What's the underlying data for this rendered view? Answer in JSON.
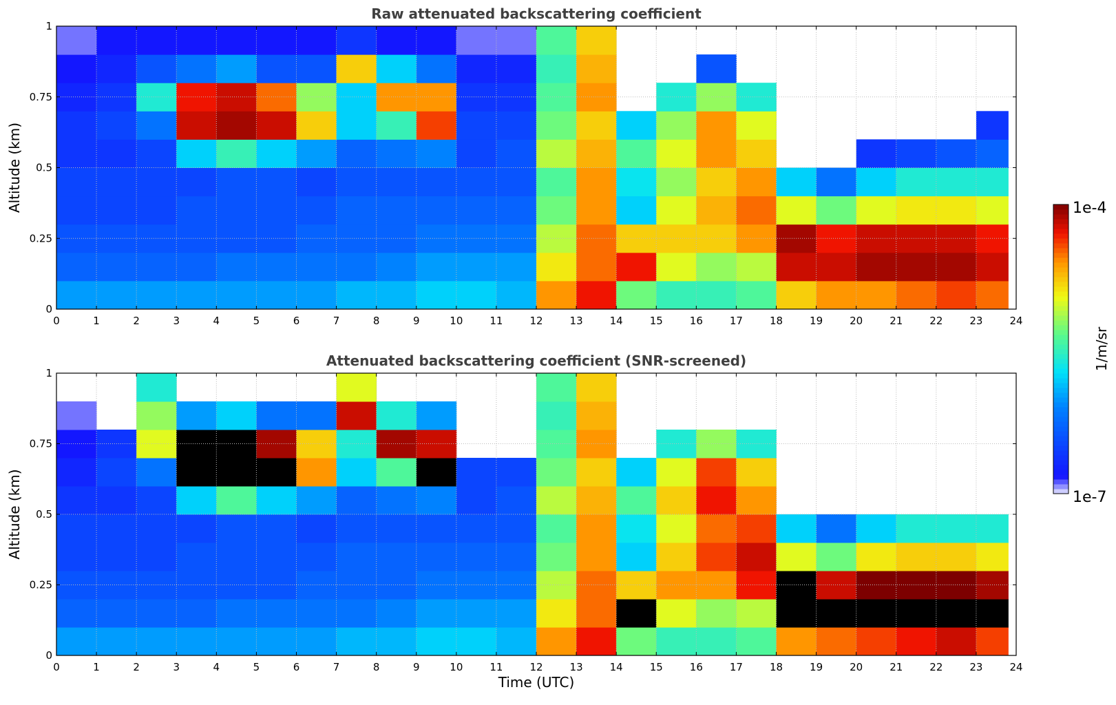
{
  "chart_data": [
    {
      "type": "heatmap",
      "title": "Raw attenuated backscattering coefficient",
      "xlabel": "",
      "ylabel": "Altitude (km)",
      "xlim": [
        0,
        24
      ],
      "ylim": [
        0,
        1
      ],
      "xticks": [
        "0",
        "1",
        "2",
        "3",
        "4",
        "5",
        "6",
        "7",
        "8",
        "9",
        "10",
        "11",
        "12",
        "13",
        "14",
        "15",
        "16",
        "17",
        "18",
        "19",
        "20",
        "21",
        "22",
        "23",
        "24"
      ],
      "yticks": [
        "0",
        "0.25",
        "0.5",
        "0.75",
        "1"
      ],
      "grid": true,
      "saturate_black": false,
      "x_bin_hours": 1,
      "altitude_bins_km": [
        0.05,
        0.15,
        0.25,
        0.35,
        0.45,
        0.55,
        0.65,
        0.75,
        0.85,
        0.95
      ],
      "value_units": "log10(1/m/sr)",
      "data_end_hour": 23.8,
      "columns": [
        [
          -6.0,
          -6.3,
          -6.4,
          -6.5,
          -6.5,
          -6.6,
          -6.6,
          -6.7,
          -6.8,
          -6.9
        ],
        [
          -6.0,
          -6.3,
          -6.4,
          -6.5,
          -6.5,
          -6.6,
          -6.5,
          -6.6,
          -6.7,
          -6.8
        ],
        [
          -6.0,
          -6.3,
          -6.4,
          -6.5,
          -6.5,
          -6.5,
          -6.2,
          -5.6,
          -6.4,
          -6.8
        ],
        [
          -6.0,
          -6.3,
          -6.4,
          -6.4,
          -6.5,
          -5.8,
          -4.2,
          -4.3,
          -6.2,
          -6.8
        ],
        [
          -6.0,
          -6.2,
          -6.4,
          -6.4,
          -6.4,
          -5.5,
          -4.1,
          -4.2,
          -6.0,
          -6.8
        ],
        [
          -6.0,
          -6.2,
          -6.4,
          -6.4,
          -6.4,
          -5.8,
          -4.2,
          -4.5,
          -6.4,
          -6.8
        ],
        [
          -6.0,
          -6.2,
          -6.3,
          -6.4,
          -6.5,
          -6.0,
          -4.8,
          -5.2,
          -6.4,
          -6.8
        ],
        [
          -5.9,
          -6.2,
          -6.3,
          -6.3,
          -6.4,
          -6.3,
          -5.8,
          -5.8,
          -4.8,
          -6.6
        ],
        [
          -5.9,
          -6.1,
          -6.3,
          -6.3,
          -6.4,
          -6.2,
          -5.5,
          -4.6,
          -5.8,
          -6.8
        ],
        [
          -5.8,
          -6.0,
          -6.2,
          -6.3,
          -6.4,
          -6.1,
          -4.4,
          -4.6,
          -6.2,
          -6.8
        ],
        [
          -5.8,
          -6.0,
          -6.2,
          -6.3,
          -6.4,
          -6.5,
          -6.5,
          -6.6,
          -6.7,
          -6.9
        ],
        [
          -5.9,
          -6.0,
          -6.2,
          -6.3,
          -6.4,
          -6.4,
          -6.5,
          -6.6,
          -6.7,
          -6.9
        ],
        [
          -4.6,
          -4.9,
          -5.1,
          -5.3,
          -5.4,
          -5.1,
          -5.3,
          -5.4,
          -5.5,
          -5.4
        ],
        [
          -4.3,
          -4.5,
          -4.5,
          -4.6,
          -4.6,
          -4.7,
          -4.8,
          -4.6,
          -4.7,
          -4.8
        ],
        [
          -5.3,
          -4.3,
          -4.8,
          -5.8,
          -5.7,
          -5.4,
          -5.8,
          null,
          null,
          null
        ],
        [
          -5.5,
          -5.0,
          -4.8,
          -5.0,
          -5.2,
          -5.0,
          -5.2,
          -5.6,
          null,
          null
        ],
        [
          -5.5,
          -5.2,
          -4.8,
          -4.7,
          -4.8,
          -4.6,
          -4.6,
          -5.2,
          -6.4,
          null
        ],
        [
          -5.4,
          -5.1,
          -4.6,
          -4.5,
          -4.6,
          -4.8,
          -5.0,
          -5.6,
          null,
          null
        ],
        [
          -4.8,
          -4.2,
          -4.1,
          -5.0,
          -5.8,
          null,
          null,
          null,
          null,
          null
        ],
        [
          -4.6,
          -4.2,
          -4.3,
          -5.3,
          -6.2,
          null,
          null,
          null,
          null,
          null
        ],
        [
          -4.6,
          -4.1,
          -4.2,
          -5.0,
          -5.8,
          -6.6,
          null,
          null,
          null,
          null
        ],
        [
          -4.5,
          -4.1,
          -4.2,
          -4.9,
          -5.6,
          -6.5,
          null,
          null,
          null,
          null
        ],
        [
          -4.4,
          -4.1,
          -4.2,
          -4.9,
          -5.6,
          -6.4,
          null,
          null,
          null,
          null
        ],
        [
          -4.5,
          -4.2,
          -4.3,
          -5.0,
          -5.6,
          -6.3,
          -6.6,
          null,
          null,
          null
        ]
      ]
    },
    {
      "type": "heatmap",
      "title": "Attenuated backscattering coefficient (SNR-screened)",
      "xlabel": "Time (UTC)",
      "ylabel": "Altitude (km)",
      "xlim": [
        0,
        24
      ],
      "ylim": [
        0,
        1
      ],
      "xticks": [
        "0",
        "1",
        "2",
        "3",
        "4",
        "5",
        "6",
        "7",
        "8",
        "9",
        "10",
        "11",
        "12",
        "13",
        "14",
        "15",
        "16",
        "17",
        "18",
        "19",
        "20",
        "21",
        "22",
        "23",
        "24"
      ],
      "yticks": [
        "0",
        "0.25",
        "0.5",
        "0.75",
        "1"
      ],
      "grid": true,
      "saturate_black": true,
      "x_bin_hours": 1,
      "altitude_bins_km": [
        0.05,
        0.15,
        0.25,
        0.35,
        0.45,
        0.55,
        0.65,
        0.75,
        0.85,
        0.95
      ],
      "value_units": "log10(1/m/sr)",
      "data_end_hour": 23.8,
      "columns": [
        [
          -6.0,
          -6.3,
          -6.4,
          -6.5,
          -6.5,
          -6.6,
          -6.7,
          -6.8,
          -6.9,
          null
        ],
        [
          -6.0,
          -6.3,
          -6.4,
          -6.5,
          -6.5,
          -6.6,
          -6.5,
          -6.6,
          null,
          null
        ],
        [
          -6.0,
          -6.3,
          -6.4,
          -6.5,
          -6.5,
          -6.5,
          -6.2,
          -5.0,
          -5.2,
          -5.6
        ],
        [
          -6.0,
          -6.3,
          -6.4,
          -6.4,
          -6.5,
          -5.8,
          -3.8,
          -3.9,
          -6.0,
          null
        ],
        [
          -6.0,
          -6.2,
          -6.4,
          -6.4,
          -6.4,
          -5.4,
          -3.8,
          -3.8,
          -5.8,
          null
        ],
        [
          -6.0,
          -6.2,
          -6.4,
          -6.4,
          -6.4,
          -5.8,
          -3.8,
          -4.1,
          -6.2,
          null
        ],
        [
          -6.0,
          -6.2,
          -6.3,
          -6.4,
          -6.5,
          -6.0,
          -4.6,
          -4.8,
          -6.2,
          null
        ],
        [
          -5.9,
          -6.2,
          -6.3,
          -6.3,
          -6.4,
          -6.3,
          -5.8,
          -5.6,
          -4.2,
          -5.0
        ],
        [
          -5.9,
          -6.1,
          -6.3,
          -6.3,
          -6.4,
          -6.2,
          -5.4,
          -4.1,
          -5.6,
          null
        ],
        [
          -5.8,
          -6.0,
          -6.2,
          -6.3,
          -6.4,
          -6.1,
          -3.9,
          -4.2,
          -6.0,
          null
        ],
        [
          -5.8,
          -6.0,
          -6.2,
          -6.3,
          -6.4,
          -6.5,
          -6.5,
          null,
          null,
          null
        ],
        [
          -5.9,
          -6.0,
          -6.2,
          -6.3,
          -6.4,
          -6.4,
          -6.5,
          null,
          null,
          null
        ],
        [
          -4.6,
          -4.9,
          -5.1,
          -5.3,
          -5.4,
          -5.1,
          -5.3,
          -5.4,
          -5.5,
          -5.4
        ],
        [
          -4.3,
          -4.5,
          -4.5,
          -4.6,
          -4.6,
          -4.7,
          -4.8,
          -4.6,
          -4.7,
          -4.8
        ],
        [
          -5.3,
          -3.8,
          -4.8,
          -5.8,
          -5.7,
          -5.4,
          -5.8,
          null,
          null,
          null
        ],
        [
          -5.5,
          -5.0,
          -4.6,
          -4.8,
          -5.0,
          -4.8,
          -5.0,
          -5.6,
          null,
          null
        ],
        [
          -5.5,
          -5.2,
          -4.6,
          -4.4,
          -4.5,
          -4.3,
          -4.4,
          -5.2,
          null,
          null
        ],
        [
          -5.4,
          -5.1,
          -4.3,
          -4.2,
          -4.4,
          -4.6,
          -4.8,
          -5.6,
          null,
          null
        ],
        [
          -4.6,
          -3.8,
          -3.9,
          -5.0,
          -5.8,
          null,
          null,
          null,
          null,
          null
        ],
        [
          -4.5,
          -3.9,
          -4.2,
          -5.3,
          -6.2,
          null,
          null,
          null,
          null,
          null
        ],
        [
          -4.4,
          -3.8,
          -4.0,
          -4.9,
          -5.8,
          null,
          null,
          null,
          null,
          null
        ],
        [
          -4.3,
          -3.8,
          -4.0,
          -4.8,
          -5.6,
          null,
          null,
          null,
          null,
          null
        ],
        [
          -4.2,
          -3.8,
          -4.0,
          -4.8,
          -5.6,
          null,
          null,
          null,
          null,
          null
        ],
        [
          -4.4,
          -3.9,
          -4.1,
          -4.9,
          -5.6,
          null,
          null,
          null,
          null,
          null
        ]
      ]
    }
  ],
  "colorbar": {
    "label": "1/m/sr",
    "max_label": "1e-4",
    "min_label": "1e-7",
    "range_log10": [
      -7,
      -4
    ],
    "saturated_color": "#000000"
  }
}
